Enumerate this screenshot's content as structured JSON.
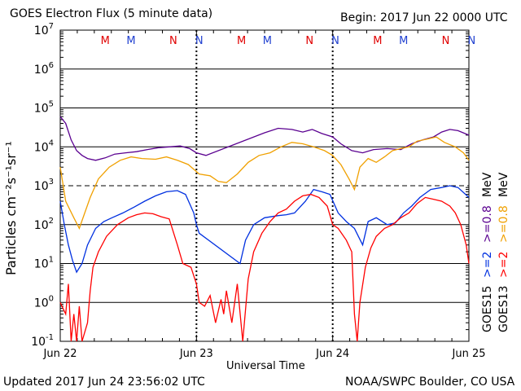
{
  "header": {
    "title": "GOES Electron Flux (5 minute data)",
    "begin": "Begin: 2017 Jun 22 0000 UTC"
  },
  "footer": {
    "updated": "Updated 2017 Jun 24 23:56:02 UTC",
    "credit": "NOAA/SWPC Boulder, CO USA"
  },
  "colors": {
    "goes15_08": "#5a0090",
    "goes13_08": "#f0a000",
    "goes15_2": "#0030e0",
    "goes13_2": "#ff0000",
    "marker_red": "#e00000",
    "marker_blue": "#2040d0"
  },
  "chart_data": {
    "type": "line",
    "title": "GOES Electron Flux (5 minute data)",
    "xlabel": "Universal Time",
    "ylabel": "Particles cm⁻²s⁻¹sr⁻¹",
    "y_scale": "log",
    "ylim": [
      0.1,
      10000000
    ],
    "y_ticks": [
      {
        "base": "10",
        "exp": "-1"
      },
      {
        "base": "10",
        "exp": "0"
      },
      {
        "base": "10",
        "exp": "1"
      },
      {
        "base": "10",
        "exp": "2"
      },
      {
        "base": "10",
        "exp": "3"
      },
      {
        "base": "10",
        "exp": "4"
      },
      {
        "base": "10",
        "exp": "5"
      },
      {
        "base": "10",
        "exp": "6"
      },
      {
        "base": "10",
        "exp": "7"
      }
    ],
    "x_ticks": [
      "Jun 22",
      "Jun 23",
      "Jun 24",
      "Jun 25"
    ],
    "threshold_dashed": 1000,
    "grid": true,
    "markers": [
      {
        "label": "M",
        "day": 0.33,
        "color": "red"
      },
      {
        "label": "M",
        "day": 0.52,
        "color": "blue"
      },
      {
        "label": "N",
        "day": 0.83,
        "color": "red"
      },
      {
        "label": "N",
        "day": 1.02,
        "color": "blue"
      },
      {
        "label": "M",
        "day": 1.33,
        "color": "red"
      },
      {
        "label": "M",
        "day": 1.52,
        "color": "blue"
      },
      {
        "label": "N",
        "day": 1.83,
        "color": "red"
      },
      {
        "label": "N",
        "day": 2.02,
        "color": "blue"
      },
      {
        "label": "M",
        "day": 2.33,
        "color": "red"
      },
      {
        "label": "M",
        "day": 2.52,
        "color": "blue"
      },
      {
        "label": "N",
        "day": 2.83,
        "color": "red"
      },
      {
        "label": "N",
        "day": 3.02,
        "color": "blue"
      }
    ],
    "right_legend": [
      {
        "text": "GOES15",
        "color": "#000000"
      },
      {
        "text": "GOES13",
        "color": "#000000"
      },
      {
        "text": ">=2",
        "color": "#0030e0"
      },
      {
        "text": ">=2",
        "color": "#ff0000"
      },
      {
        "text": ">=0.8",
        "color": "#5a0090"
      },
      {
        "text": ">=0.8",
        "color": "#f0a000"
      },
      {
        "text": "MeV",
        "color": "#000000"
      },
      {
        "text": "MeV",
        "color": "#000000"
      }
    ],
    "series": [
      {
        "key": "goes15_08",
        "points": [
          [
            0.0,
            60000
          ],
          [
            0.04,
            40000
          ],
          [
            0.08,
            15000
          ],
          [
            0.12,
            8000
          ],
          [
            0.16,
            6000
          ],
          [
            0.2,
            5000
          ],
          [
            0.26,
            4500
          ],
          [
            0.33,
            5200
          ],
          [
            0.4,
            6500
          ],
          [
            0.48,
            7000
          ],
          [
            0.56,
            7500
          ],
          [
            0.64,
            8500
          ],
          [
            0.72,
            9500
          ],
          [
            0.8,
            10000
          ],
          [
            0.88,
            10500
          ],
          [
            0.95,
            9000
          ],
          [
            1.0,
            7000
          ],
          [
            1.07,
            6000
          ],
          [
            1.5,
            23000
          ],
          [
            1.6,
            30000
          ],
          [
            1.7,
            28000
          ],
          [
            1.78,
            24000
          ],
          [
            1.85,
            28000
          ],
          [
            1.92,
            22000
          ],
          [
            2.0,
            18000
          ],
          [
            2.06,
            12000
          ],
          [
            2.14,
            8000
          ],
          [
            2.22,
            7000
          ],
          [
            2.3,
            8500
          ],
          [
            2.4,
            9000
          ],
          [
            2.5,
            8500
          ],
          [
            2.58,
            12000
          ],
          [
            2.66,
            15000
          ],
          [
            2.74,
            18000
          ],
          [
            2.8,
            24000
          ],
          [
            2.86,
            28000
          ],
          [
            2.92,
            26000
          ],
          [
            3.0,
            20000
          ]
        ]
      },
      {
        "key": "goes13_08",
        "points": [
          [
            0.0,
            3000
          ],
          [
            0.04,
            400
          ],
          [
            0.1,
            150
          ],
          [
            0.14,
            80
          ],
          [
            0.18,
            200
          ],
          [
            0.22,
            500
          ],
          [
            0.28,
            1500
          ],
          [
            0.36,
            3000
          ],
          [
            0.44,
            4500
          ],
          [
            0.52,
            5500
          ],
          [
            0.6,
            5000
          ],
          [
            0.7,
            4800
          ],
          [
            0.78,
            5500
          ],
          [
            0.86,
            4500
          ],
          [
            0.94,
            3500
          ],
          [
            1.02,
            2000
          ],
          [
            1.1,
            1800
          ],
          [
            1.16,
            1300
          ],
          [
            1.22,
            1200
          ],
          [
            1.3,
            2000
          ],
          [
            1.38,
            4000
          ],
          [
            1.46,
            6000
          ],
          [
            1.54,
            7000
          ],
          [
            1.62,
            10000
          ],
          [
            1.7,
            13000
          ],
          [
            1.78,
            12000
          ],
          [
            1.86,
            10000
          ],
          [
            1.94,
            8000
          ],
          [
            2.0,
            6000
          ],
          [
            2.06,
            3500
          ],
          [
            2.12,
            1500
          ],
          [
            2.16,
            800
          ],
          [
            2.2,
            3000
          ],
          [
            2.26,
            5000
          ],
          [
            2.32,
            4000
          ],
          [
            2.38,
            5500
          ],
          [
            2.44,
            8000
          ],
          [
            2.5,
            9000
          ],
          [
            2.56,
            10000
          ],
          [
            2.62,
            14000
          ],
          [
            2.7,
            16000
          ],
          [
            2.76,
            18000
          ],
          [
            2.82,
            13000
          ],
          [
            2.9,
            10000
          ],
          [
            2.96,
            7000
          ],
          [
            3.0,
            4500
          ]
        ]
      },
      {
        "key": "goes15_2",
        "points": [
          [
            0.0,
            400
          ],
          [
            0.03,
            100
          ],
          [
            0.06,
            30
          ],
          [
            0.09,
            12
          ],
          [
            0.12,
            6
          ],
          [
            0.16,
            10
          ],
          [
            0.2,
            30
          ],
          [
            0.26,
            80
          ],
          [
            0.32,
            120
          ],
          [
            0.38,
            150
          ],
          [
            0.46,
            200
          ],
          [
            0.54,
            280
          ],
          [
            0.62,
            400
          ],
          [
            0.7,
            550
          ],
          [
            0.78,
            700
          ],
          [
            0.86,
            750
          ],
          [
            0.92,
            600
          ],
          [
            0.98,
            200
          ],
          [
            1.0,
            100
          ],
          [
            1.02,
            60
          ],
          [
            1.32,
            10
          ],
          [
            1.36,
            40
          ],
          [
            1.42,
            100
          ],
          [
            1.5,
            150
          ],
          [
            1.6,
            170
          ],
          [
            1.66,
            180
          ],
          [
            1.72,
            200
          ],
          [
            1.8,
            400
          ],
          [
            1.86,
            800
          ],
          [
            1.92,
            700
          ],
          [
            1.98,
            600
          ],
          [
            2.04,
            200
          ],
          [
            2.1,
            120
          ],
          [
            2.16,
            80
          ],
          [
            2.22,
            30
          ],
          [
            2.26,
            120
          ],
          [
            2.32,
            150
          ],
          [
            2.4,
            100
          ],
          [
            2.46,
            110
          ],
          [
            2.52,
            200
          ],
          [
            2.58,
            300
          ],
          [
            2.64,
            500
          ],
          [
            2.72,
            800
          ],
          [
            2.8,
            900
          ],
          [
            2.86,
            1000
          ],
          [
            2.92,
            900
          ],
          [
            3.0,
            500
          ]
        ]
      },
      {
        "key": "goes13_2",
        "points": [
          [
            0.0,
            1
          ],
          [
            0.04,
            0.5
          ],
          [
            0.06,
            3
          ],
          [
            0.08,
            0.1
          ],
          [
            0.1,
            0.5
          ],
          [
            0.12,
            0.1
          ],
          [
            0.14,
            0.8
          ],
          [
            0.16,
            0.1
          ],
          [
            0.2,
            0.3
          ],
          [
            0.22,
            2
          ],
          [
            0.24,
            8
          ],
          [
            0.28,
            20
          ],
          [
            0.34,
            50
          ],
          [
            0.42,
            100
          ],
          [
            0.5,
            150
          ],
          [
            0.56,
            180
          ],
          [
            0.62,
            200
          ],
          [
            0.68,
            190
          ],
          [
            0.74,
            160
          ],
          [
            0.8,
            140
          ],
          [
            0.86,
            30
          ],
          [
            0.9,
            10
          ],
          [
            0.96,
            8
          ],
          [
            1.0,
            3
          ],
          [
            1.02,
            1
          ],
          [
            1.06,
            0.8
          ],
          [
            1.1,
            1.5
          ],
          [
            1.14,
            0.3
          ],
          [
            1.18,
            1.2
          ],
          [
            1.2,
            0.5
          ],
          [
            1.22,
            2
          ],
          [
            1.26,
            0.3
          ],
          [
            1.3,
            3
          ],
          [
            1.34,
            0.1
          ],
          [
            1.38,
            4
          ],
          [
            1.42,
            20
          ],
          [
            1.48,
            60
          ],
          [
            1.54,
            120
          ],
          [
            1.6,
            200
          ],
          [
            1.66,
            250
          ],
          [
            1.72,
            400
          ],
          [
            1.78,
            550
          ],
          [
            1.84,
            600
          ],
          [
            1.9,
            500
          ],
          [
            1.96,
            300
          ],
          [
            2.0,
            100
          ],
          [
            2.04,
            80
          ],
          [
            2.1,
            40
          ],
          [
            2.14,
            20
          ],
          [
            2.16,
            0.5
          ],
          [
            2.18,
            0.1
          ],
          [
            2.2,
            1
          ],
          [
            2.24,
            8
          ],
          [
            2.28,
            25
          ],
          [
            2.32,
            50
          ],
          [
            2.38,
            80
          ],
          [
            2.44,
            100
          ],
          [
            2.5,
            150
          ],
          [
            2.56,
            200
          ],
          [
            2.62,
            350
          ],
          [
            2.68,
            500
          ],
          [
            2.74,
            450
          ],
          [
            2.8,
            400
          ],
          [
            2.86,
            300
          ],
          [
            2.9,
            200
          ],
          [
            2.94,
            100
          ],
          [
            2.98,
            30
          ],
          [
            3.0,
            10
          ]
        ]
      }
    ]
  }
}
